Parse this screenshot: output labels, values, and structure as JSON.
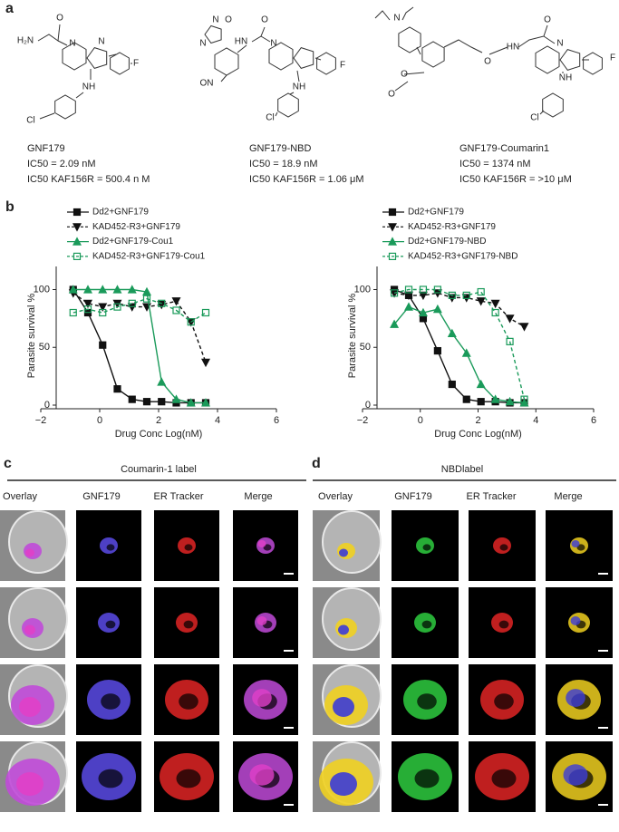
{
  "panel_labels": [
    "a",
    "b",
    "c",
    "d"
  ],
  "compounds": [
    {
      "name": "GNF179",
      "ic50": "IC50 = 2.09 nM",
      "ic50_resistant": "IC50 KAF156R = 500.4 n M",
      "atoms": [
        "H₂N",
        "O",
        "N",
        "N",
        "F",
        "NH",
        "Cl"
      ]
    },
    {
      "name": "GNF179-NBD",
      "ic50": "IC50 = 18.9 nM",
      "ic50_resistant": "IC50 KAF156R = 1.06 μM",
      "atoms": [
        "N",
        "O",
        "N",
        "HN",
        "O",
        "N",
        "F",
        "ON",
        "NH",
        "Cl"
      ]
    },
    {
      "name": "GNF179-Coumarin1",
      "ic50": "IC50 = 1374 nM",
      "ic50_resistant": "IC50 KAF156R = >10 μM",
      "atoms": [
        "N",
        "O",
        "O",
        "O",
        "HN",
        "O",
        "N",
        "F",
        "NH",
        "Cl"
      ]
    }
  ],
  "chart_data": [
    {
      "type": "line",
      "xlabel": "Drug Conc Log(nM)",
      "ylabel": "Parasite survival %",
      "xlim": [
        -2,
        6
      ],
      "xticks": [
        {
          "value": -2,
          "label": "−2"
        },
        0,
        2,
        4,
        6
      ],
      "ylim": [
        0,
        120
      ],
      "yticks": [
        0,
        50,
        100
      ],
      "x": [
        -0.9,
        -0.4,
        0.1,
        0.6,
        1.1,
        1.6,
        2.1,
        2.6,
        3.1,
        3.6
      ],
      "series": [
        {
          "name": "Dd2+GNF179",
          "color": "#111111",
          "marker": "square",
          "filled": true,
          "dashed": false,
          "values": [
            100,
            80,
            52,
            14,
            5,
            3,
            3,
            2,
            2,
            2
          ]
        },
        {
          "name": "KAD452-R3+GNF179",
          "color": "#111111",
          "marker": "triangle-down",
          "filled": true,
          "dashed": true,
          "values": [
            97,
            88,
            85,
            88,
            85,
            85,
            87,
            90,
            72,
            37
          ]
        },
        {
          "name": "Dd2+GNF179-Cou1",
          "color": "#1a9a5a",
          "marker": "triangle-up",
          "filled": true,
          "dashed": false,
          "values": [
            100,
            100,
            100,
            100,
            100,
            98,
            20,
            5,
            2,
            2
          ]
        },
        {
          "name": "KAD452-R3+GNF179-Cou1",
          "color": "#1a9a5a",
          "marker": "square",
          "filled": false,
          "dashed": true,
          "values": [
            80,
            83,
            80,
            85,
            88,
            92,
            88,
            82,
            72,
            80
          ]
        }
      ]
    },
    {
      "type": "line",
      "xlabel": "Drug Conc Log(nM)",
      "ylabel": "Parasite survival %",
      "xlim": [
        -2,
        6
      ],
      "xticks": [
        {
          "value": -2,
          "label": "−2"
        },
        0,
        2,
        4,
        6
      ],
      "ylim": [
        0,
        120
      ],
      "yticks": [
        0,
        50,
        100
      ],
      "x": [
        -0.9,
        -0.4,
        0.1,
        0.6,
        1.1,
        1.6,
        2.1,
        2.6,
        3.1,
        3.6
      ],
      "series": [
        {
          "name": "Dd2+GNF179",
          "color": "#111111",
          "marker": "square",
          "filled": true,
          "dashed": false,
          "values": [
            100,
            95,
            75,
            47,
            18,
            5,
            3,
            3,
            2,
            2
          ]
        },
        {
          "name": "KAD452-R3+GNF179",
          "color": "#111111",
          "marker": "triangle-down",
          "filled": true,
          "dashed": true,
          "values": [
            97,
            95,
            95,
            97,
            93,
            93,
            90,
            88,
            75,
            68
          ]
        },
        {
          "name": "Dd2+GNF179-NBD",
          "color": "#1a9a5a",
          "marker": "triangle-up",
          "filled": true,
          "dashed": false,
          "values": [
            70,
            85,
            80,
            83,
            62,
            45,
            18,
            5,
            3,
            2
          ]
        },
        {
          "name": "KAD452-R3+GNF179-NBD",
          "color": "#1a9a5a",
          "marker": "square",
          "filled": false,
          "dashed": true,
          "values": [
            97,
            100,
            100,
            100,
            95,
            95,
            98,
            80,
            55,
            5
          ]
        }
      ]
    }
  ],
  "microscopy": [
    {
      "title": "Coumarin-1 label",
      "columns": [
        "Overlay",
        "GNF179",
        "ER Tracker",
        "Merge"
      ]
    },
    {
      "title": "NBDlabel",
      "columns": [
        "Overlay",
        "GNF179",
        "ER Tracker",
        "Merge"
      ]
    }
  ]
}
